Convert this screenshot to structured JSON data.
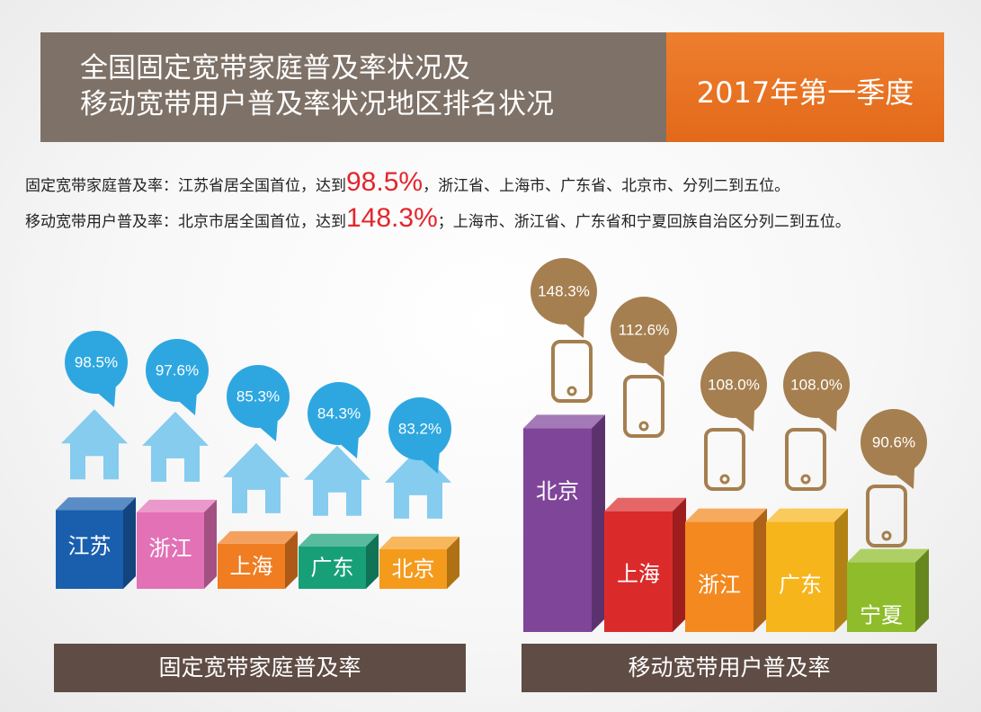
{
  "header": {
    "title_line1": "全国固定宽带家庭普及率状况及",
    "title_line2": "移动宽带用户普及率状况地区排名状况",
    "period": "2017年第一季度"
  },
  "summary": {
    "fixed_prefix": "固定宽带家庭普及率：江苏省居全国首位，达到",
    "fixed_value": "98.5%",
    "fixed_suffix": "，浙江省、上海市、广东省、北京市、分列二到五位。",
    "mobile_prefix": "移动宽带用户普及率：北京市居全国首位，达到",
    "mobile_value": "148.3%",
    "mobile_suffix": "；上海市、浙江省、广东省和宁夏回族自治区分列二到五位。"
  },
  "footer": {
    "fixed_label": "固定宽带家庭普及率",
    "mobile_label": "移动宽带用户普及率"
  },
  "colors": {
    "header_bg": "#7e7167",
    "header_accent": "#e8731f",
    "highlight": "#e3262d",
    "fixed_bubble": "#2ea7e0",
    "house": "#85ccef",
    "mobile_bubble": "#a57f4f",
    "footer_bg": "#5f4c44"
  },
  "chart_data": [
    {
      "type": "bar",
      "categories": [
        "江苏",
        "浙江",
        "上海",
        "广东",
        "北京"
      ],
      "values": [
        98.5,
        97.6,
        85.3,
        84.3,
        83.2
      ],
      "value_labels": [
        "98.5%",
        "97.6%",
        "85.3%",
        "84.3%",
        "83.2%"
      ],
      "colors": [
        "#1a5fae",
        "#e271b6",
        "#f07d22",
        "#17a077",
        "#f59b1c"
      ],
      "icon": "house-icon",
      "title": "固定宽带家庭普及率"
    },
    {
      "type": "bar",
      "categories": [
        "北京",
        "上海",
        "浙江",
        "广东",
        "宁夏"
      ],
      "values": [
        148.3,
        112.6,
        108.0,
        108.0,
        90.6
      ],
      "value_labels": [
        "148.3%",
        "112.6%",
        "108.0%",
        "108.0%",
        "90.6%"
      ],
      "colors": [
        "#7f4599",
        "#db2a2a",
        "#f3891f",
        "#f7b51c",
        "#8ebc2a"
      ],
      "icon": "phone-icon",
      "title": "移动宽带用户普及率"
    }
  ]
}
